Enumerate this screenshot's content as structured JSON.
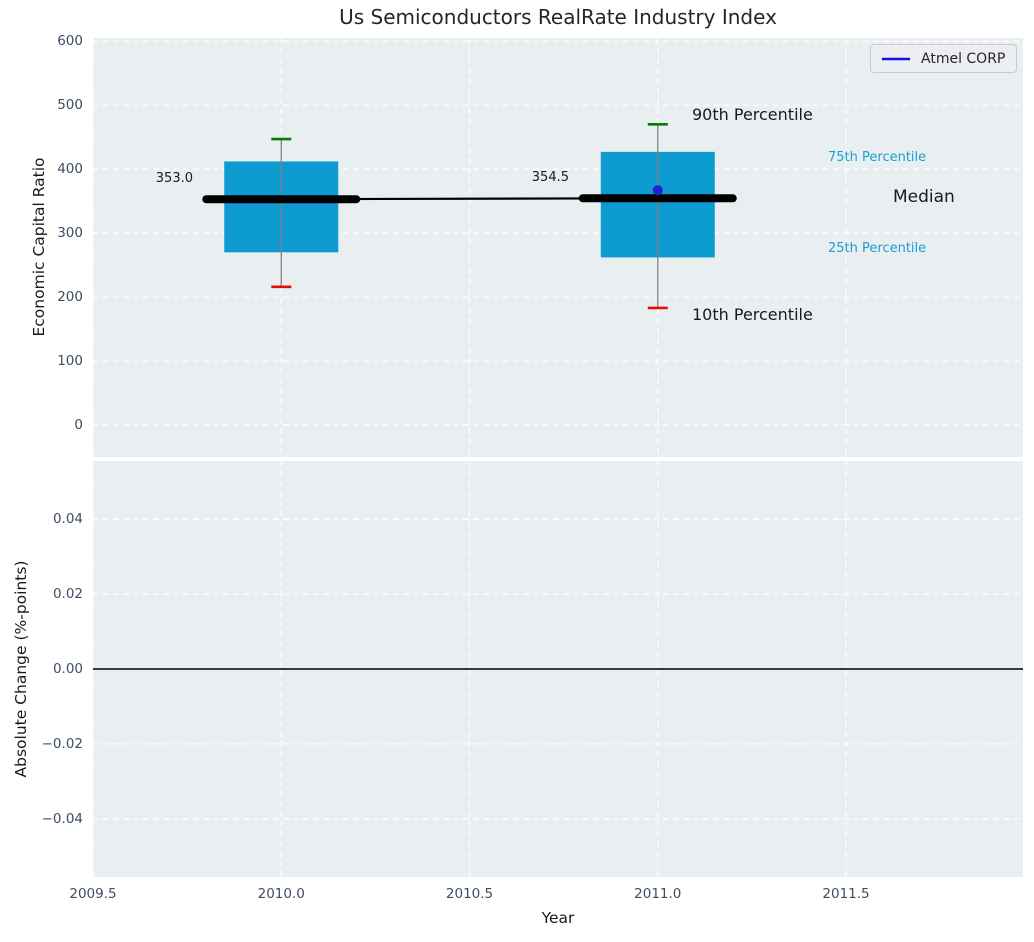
{
  "title": "Us Semiconductors RealRate Industry Index",
  "legend": {
    "label": "Atmel CORP",
    "position": "upper right"
  },
  "colors": {
    "plot_bg": "#e9eef0",
    "grid": "#ffffff",
    "box": "#0d9bd1",
    "whisker": "#808080",
    "p90_cap": "#008000",
    "p10_cap": "#e60b0b",
    "median_line": "#000000",
    "company_point": "#2222cc",
    "legend_line": "#1111e0",
    "tick_text": "#3d4e63",
    "percentile_label_text": "#1b9ed3"
  },
  "chart_data": [
    {
      "type": "box",
      "ylabel": "Economic Capital Ratio",
      "xlabel": "Year",
      "xlim": [
        2009.5,
        2011.97
      ],
      "ylim": [
        -50,
        605
      ],
      "xticks": [
        2009.5,
        2010.0,
        2010.5,
        2011.0,
        2011.5
      ],
      "xtick_labels": [
        "2009.5",
        "2010.0",
        "2010.5",
        "2011.0",
        "2011.5"
      ],
      "yticks": [
        600,
        500,
        400,
        300,
        200,
        100,
        0
      ],
      "ytick_labels": [
        "600",
        "500",
        "400",
        "300",
        "200",
        "100",
        "0"
      ],
      "grid": "white dashed",
      "boxes": [
        {
          "x": 2010.0,
          "median": 353.0,
          "q1": 270,
          "q3": 412,
          "p10": 216,
          "p90": 447,
          "label": "353.0"
        },
        {
          "x": 2011.0,
          "median": 354.5,
          "q1": 262,
          "q3": 427,
          "p10": 183,
          "p90": 470,
          "label": "354.5"
        }
      ],
      "median_trend": [
        {
          "x": 2010.0,
          "y": 353.0
        },
        {
          "x": 2011.0,
          "y": 354.5
        }
      ],
      "company_points": [
        {
          "name": "Atmel CORP",
          "x": 2011.0,
          "y": 367
        }
      ],
      "percentile_labels": {
        "p90": "90th Percentile",
        "p75": "75th Percentile",
        "median": "Median",
        "p25": "25th Percentile",
        "p10": "10th Percentile"
      }
    },
    {
      "type": "line",
      "ylabel": "Absolute Change (%-points)",
      "xlim": [
        2009.5,
        2011.97
      ],
      "ylim": [
        -0.0555,
        0.0555
      ],
      "yticks": [
        0.04,
        0.02,
        0.0,
        -0.02,
        -0.04
      ],
      "ytick_labels": [
        "0.04",
        "0.02",
        "0.00",
        "−0.02",
        "−0.04"
      ],
      "zero_line": 0.0,
      "series": [],
      "grid": "white dashed"
    }
  ]
}
